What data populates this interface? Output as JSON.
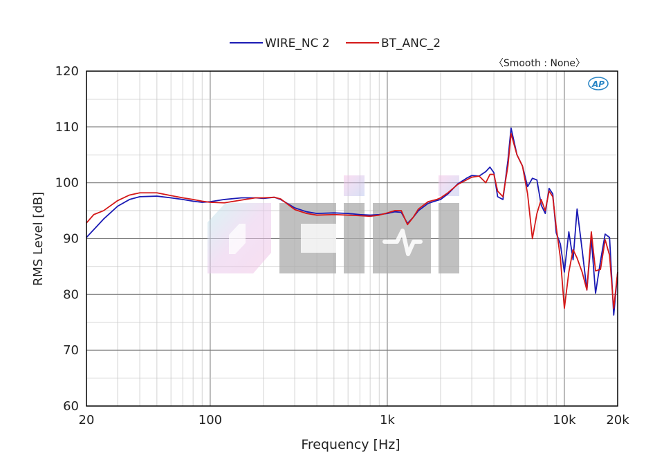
{
  "chart_data": {
    "type": "line",
    "title": "",
    "xlabel": "Frequency [Hz]",
    "ylabel": "RMS Level [dB]",
    "annotation": "〈Smooth : None〉",
    "logo_text": "AP",
    "watermark": "CIIVI",
    "x_scale": "log",
    "xlim": [
      20,
      20000
    ],
    "ylim": [
      60,
      120
    ],
    "x_ticks": [
      {
        "value": 20,
        "label": "20"
      },
      {
        "value": 100,
        "label": "100"
      },
      {
        "value": 1000,
        "label": "1k"
      },
      {
        "value": 10000,
        "label": "10k"
      },
      {
        "value": 20000,
        "label": "20k"
      }
    ],
    "y_ticks": [
      {
        "value": 60,
        "label": "60"
      },
      {
        "value": 70,
        "label": "70"
      },
      {
        "value": 80,
        "label": "80"
      },
      {
        "value": 90,
        "label": "90"
      },
      {
        "value": 100,
        "label": "100"
      },
      {
        "value": 110,
        "label": "110"
      },
      {
        "value": 120,
        "label": "120"
      }
    ],
    "grid": true,
    "legend_position": "top-center",
    "series": [
      {
        "name": "WIRE_NC 2",
        "color": "#1a1ab4",
        "points": [
          [
            20,
            90.2
          ],
          [
            25,
            93.5
          ],
          [
            30,
            95.8
          ],
          [
            35,
            97
          ],
          [
            40,
            97.5
          ],
          [
            50,
            97.6
          ],
          [
            60,
            97.3
          ],
          [
            70,
            97
          ],
          [
            80,
            96.7
          ],
          [
            90,
            96.5
          ],
          [
            100,
            96.6
          ],
          [
            120,
            97
          ],
          [
            150,
            97.3
          ],
          [
            180,
            97.3
          ],
          [
            200,
            97.2
          ],
          [
            230,
            97.4
          ],
          [
            250,
            97
          ],
          [
            300,
            95.5
          ],
          [
            350,
            94.8
          ],
          [
            400,
            94.5
          ],
          [
            500,
            94.6
          ],
          [
            600,
            94.5
          ],
          [
            700,
            94.3
          ],
          [
            800,
            94.2
          ],
          [
            900,
            94.3
          ],
          [
            1000,
            94.5
          ],
          [
            1100,
            94.8
          ],
          [
            1200,
            94.7
          ],
          [
            1300,
            92.7
          ],
          [
            1400,
            93.8
          ],
          [
            1500,
            95
          ],
          [
            1700,
            96.3
          ],
          [
            1900,
            96.8
          ],
          [
            2000,
            97
          ],
          [
            2200,
            98
          ],
          [
            2500,
            99.8
          ],
          [
            2800,
            100.8
          ],
          [
            3000,
            101.3
          ],
          [
            3300,
            101.2
          ],
          [
            3600,
            102
          ],
          [
            3800,
            102.8
          ],
          [
            4000,
            101.8
          ],
          [
            4200,
            97.5
          ],
          [
            4500,
            97
          ],
          [
            4800,
            104
          ],
          [
            5000,
            109.8
          ],
          [
            5400,
            105
          ],
          [
            5800,
            103
          ],
          [
            6200,
            99.3
          ],
          [
            6600,
            100.8
          ],
          [
            7000,
            100.5
          ],
          [
            7400,
            96
          ],
          [
            7800,
            94.5
          ],
          [
            8200,
            99
          ],
          [
            8600,
            98
          ],
          [
            9000,
            91
          ],
          [
            9500,
            89
          ],
          [
            10000,
            84
          ],
          [
            10600,
            91.2
          ],
          [
            11200,
            86.2
          ],
          [
            11800,
            95.3
          ],
          [
            12600,
            88
          ],
          [
            13400,
            80.8
          ],
          [
            14200,
            90
          ],
          [
            15000,
            80.2
          ],
          [
            16000,
            86
          ],
          [
            17000,
            90.8
          ],
          [
            18000,
            90.2
          ],
          [
            19000,
            76.3
          ],
          [
            20000,
            84
          ]
        ]
      },
      {
        "name": "BT_ANC_2",
        "color": "#d41818",
        "points": [
          [
            20,
            92.8
          ],
          [
            22,
            94.3
          ],
          [
            25,
            95
          ],
          [
            30,
            96.8
          ],
          [
            35,
            97.8
          ],
          [
            40,
            98.2
          ],
          [
            50,
            98.2
          ],
          [
            60,
            97.7
          ],
          [
            70,
            97.3
          ],
          [
            80,
            97
          ],
          [
            90,
            96.7
          ],
          [
            100,
            96.5
          ],
          [
            120,
            96.4
          ],
          [
            150,
            96.9
          ],
          [
            180,
            97.3
          ],
          [
            200,
            97.3
          ],
          [
            230,
            97.4
          ],
          [
            250,
            97.1
          ],
          [
            300,
            95.2
          ],
          [
            350,
            94.5
          ],
          [
            400,
            94.2
          ],
          [
            500,
            94.3
          ],
          [
            600,
            94.2
          ],
          [
            700,
            94.1
          ],
          [
            800,
            94
          ],
          [
            900,
            94.2
          ],
          [
            1000,
            94.6
          ],
          [
            1100,
            95
          ],
          [
            1200,
            95
          ],
          [
            1300,
            92.5
          ],
          [
            1400,
            93.8
          ],
          [
            1500,
            95.3
          ],
          [
            1700,
            96.6
          ],
          [
            1900,
            97
          ],
          [
            2000,
            97.3
          ],
          [
            2200,
            98.2
          ],
          [
            2500,
            99.7
          ],
          [
            2800,
            100.5
          ],
          [
            3000,
            101
          ],
          [
            3300,
            101.2
          ],
          [
            3600,
            100
          ],
          [
            3800,
            101.5
          ],
          [
            4000,
            101.5
          ],
          [
            4200,
            98.5
          ],
          [
            4500,
            97.5
          ],
          [
            4800,
            103
          ],
          [
            5000,
            108.8
          ],
          [
            5400,
            105
          ],
          [
            5800,
            103
          ],
          [
            6200,
            98
          ],
          [
            6600,
            90
          ],
          [
            7000,
            94.5
          ],
          [
            7400,
            97
          ],
          [
            7800,
            95
          ],
          [
            8200,
            98.5
          ],
          [
            8600,
            97.5
          ],
          [
            9000,
            92
          ],
          [
            9500,
            86.5
          ],
          [
            10000,
            77.5
          ],
          [
            10600,
            84
          ],
          [
            11200,
            88
          ],
          [
            11800,
            86.5
          ],
          [
            12600,
            84
          ],
          [
            13400,
            80.8
          ],
          [
            14200,
            91.2
          ],
          [
            15000,
            84.2
          ],
          [
            16000,
            84.5
          ],
          [
            17000,
            89.8
          ],
          [
            18000,
            87
          ],
          [
            19000,
            77.5
          ],
          [
            20000,
            84
          ]
        ]
      }
    ]
  }
}
